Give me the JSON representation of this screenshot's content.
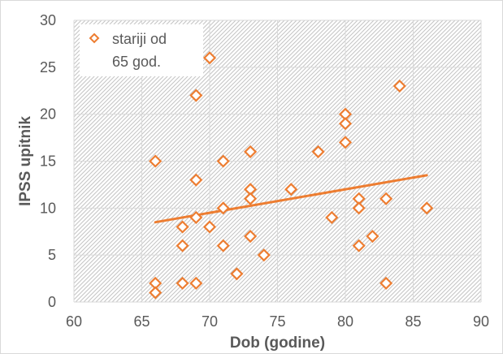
{
  "chart_data": {
    "type": "scatter",
    "xlabel": "Dob (godine)",
    "ylabel": "IPSS upitnik",
    "xlim": [
      60,
      90
    ],
    "ylim": [
      0,
      30
    ],
    "x_ticks": [
      "60",
      "65",
      "70",
      "75",
      "80",
      "85",
      "90"
    ],
    "y_ticks": [
      "0",
      "5",
      "10",
      "15",
      "20",
      "25",
      "30"
    ],
    "grid": true,
    "legend_position": "top-left",
    "series": [
      {
        "name": "stariji od 65 god.",
        "legend_lines": [
          "stariji od",
          "65 god."
        ],
        "color": "#ed7d31",
        "marker": "diamond-open",
        "points": [
          [
            66,
            15
          ],
          [
            66,
            2
          ],
          [
            66,
            1
          ],
          [
            68,
            8
          ],
          [
            68,
            6
          ],
          [
            68,
            2
          ],
          [
            69,
            22
          ],
          [
            69,
            13
          ],
          [
            69,
            9
          ],
          [
            69,
            2
          ],
          [
            70,
            26
          ],
          [
            70,
            8
          ],
          [
            71,
            15
          ],
          [
            71,
            10
          ],
          [
            71,
            6
          ],
          [
            72,
            3
          ],
          [
            73,
            16
          ],
          [
            73,
            12
          ],
          [
            73,
            11
          ],
          [
            73,
            7
          ],
          [
            74,
            5
          ],
          [
            76,
            12
          ],
          [
            78,
            16
          ],
          [
            79,
            9
          ],
          [
            80,
            20
          ],
          [
            80,
            19
          ],
          [
            80,
            17
          ],
          [
            81,
            11
          ],
          [
            81,
            10
          ],
          [
            81,
            6
          ],
          [
            82,
            7
          ],
          [
            83,
            11
          ],
          [
            83,
            2
          ],
          [
            84,
            23
          ],
          [
            86,
            10
          ]
        ]
      }
    ],
    "trendline": {
      "type": "linear",
      "color": "#ed7d31",
      "x": [
        66,
        86
      ],
      "y": [
        8.5,
        13.5
      ]
    }
  }
}
